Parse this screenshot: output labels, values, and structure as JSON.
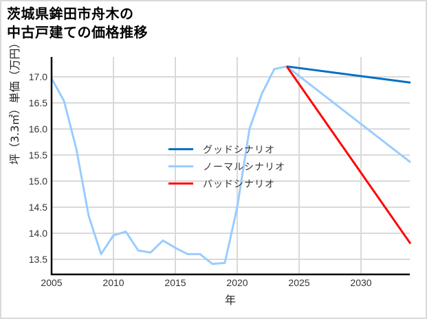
{
  "title": {
    "line1": "茨城県鉾田市舟木の",
    "line2": "中古戸建ての価格推移"
  },
  "axes": {
    "ylabel": "坪（3.3㎡）単価（万円）",
    "xlabel": "年"
  },
  "legend": [
    {
      "label": "グッドシナリオ",
      "color": "#0070c0"
    },
    {
      "label": "ノーマルシナリオ",
      "color": "#99ccff"
    },
    {
      "label": "バッドシナリオ",
      "color": "#ff0000"
    }
  ],
  "chart_data": {
    "type": "line",
    "title": "茨城県鉾田市舟木の中古戸建ての価格推移",
    "xlabel": "年",
    "ylabel": "坪（3.3㎡）単価（万円）",
    "xlim": [
      2005,
      2034
    ],
    "ylim": [
      13.2,
      17.4
    ],
    "xticks": [
      2005,
      2010,
      2015,
      2020,
      2025,
      2030
    ],
    "yticks": [
      13.5,
      14.0,
      14.5,
      15.0,
      15.5,
      16.0,
      16.5,
      17.0
    ],
    "grid": true,
    "legend_position": "center",
    "series": [
      {
        "name": "ノーマルシナリオ",
        "color": "#99ccff",
        "x": [
          2005,
          2006,
          2007,
          2008,
          2009,
          2010,
          2011,
          2012,
          2013,
          2014,
          2015,
          2016,
          2017,
          2018,
          2019,
          2020,
          2021,
          2022,
          2023,
          2024,
          2034
        ],
        "y": [
          16.97,
          16.54,
          15.62,
          14.33,
          13.6,
          13.96,
          14.03,
          13.67,
          13.63,
          13.86,
          13.72,
          13.6,
          13.6,
          13.41,
          13.43,
          14.5,
          16.01,
          16.68,
          17.15,
          17.2,
          15.36
        ]
      },
      {
        "name": "グッドシナリオ",
        "color": "#0070c0",
        "x": [
          2024,
          2034
        ],
        "y": [
          17.2,
          16.89
        ]
      },
      {
        "name": "バッドシナリオ",
        "color": "#ff0000",
        "x": [
          2024,
          2034
        ],
        "y": [
          17.2,
          13.8
        ]
      }
    ]
  }
}
